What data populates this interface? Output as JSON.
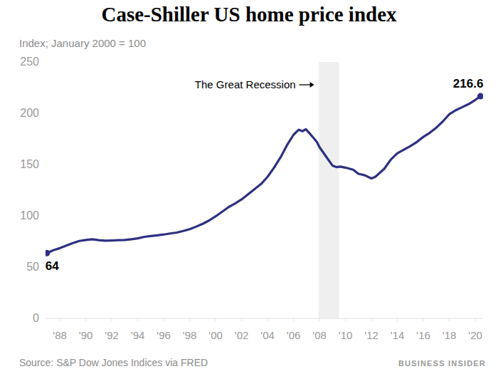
{
  "chart_data": {
    "type": "line",
    "title": "Case-Shiller US home price index",
    "subtitle": "Index; January 2000 = 100",
    "source": "Source: S&P Dow Jones Indices via FRED",
    "credit": "BUSINESS INSIDER",
    "color": "#2e3082",
    "grid": false,
    "data_labels": true,
    "xlim": [
      1986.9,
      2020.6
    ],
    "ylim": [
      0,
      250
    ],
    "yticks": [
      0,
      50,
      100,
      150,
      200,
      250
    ],
    "xticks": [
      {
        "value": 1988,
        "label": "'88"
      },
      {
        "value": 1990,
        "label": "'90"
      },
      {
        "value": 1992,
        "label": "'92"
      },
      {
        "value": 1994,
        "label": "'94"
      },
      {
        "value": 1996,
        "label": "'96"
      },
      {
        "value": 1998,
        "label": "'98"
      },
      {
        "value": 2000,
        "label": "'00"
      },
      {
        "value": 2002,
        "label": "'02"
      },
      {
        "value": 2004,
        "label": "'04"
      },
      {
        "value": 2006,
        "label": "'06"
      },
      {
        "value": 2008,
        "label": "'08"
      },
      {
        "value": 2010,
        "label": "'10"
      },
      {
        "value": 2012,
        "label": "'12"
      },
      {
        "value": 2014,
        "label": "'14"
      },
      {
        "value": 2016,
        "label": "'16"
      },
      {
        "value": 2018,
        "label": "'18"
      },
      {
        "value": 2020,
        "label": "'20"
      }
    ],
    "annotations": [
      {
        "text": "The Great Recession",
        "x_start": 2007.92,
        "x_end": 2009.5
      }
    ],
    "x": [
      1987.0,
      1987.5,
      1988.0,
      1988.5,
      1989.0,
      1989.5,
      1990.0,
      1990.5,
      1991.0,
      1991.5,
      1992.0,
      1992.5,
      1993.0,
      1993.5,
      1994.0,
      1994.5,
      1995.0,
      1995.5,
      1996.0,
      1996.5,
      1997.0,
      1997.5,
      1998.0,
      1998.5,
      1999.0,
      1999.5,
      2000.0,
      2000.5,
      2001.0,
      2001.5,
      2002.0,
      2002.5,
      2003.0,
      2003.5,
      2004.0,
      2004.5,
      2005.0,
      2005.5,
      2006.0,
      2006.4,
      2006.7,
      2006.95,
      2007.2,
      2007.5,
      2007.8,
      2008.0,
      2008.5,
      2009.0,
      2009.3,
      2009.6,
      2010.0,
      2010.3,
      2010.6,
      2011.0,
      2011.5,
      2012.0,
      2012.3,
      2012.7,
      2013.0,
      2013.5,
      2014.0,
      2014.5,
      2015.0,
      2015.5,
      2016.0,
      2016.5,
      2017.0,
      2017.5,
      2018.0,
      2018.5,
      2019.0,
      2019.5,
      2020.0,
      2020.4
    ],
    "values": [
      63.7,
      66.5,
      68.5,
      71,
      73.5,
      75.5,
      76.5,
      77.2,
      76.3,
      75.8,
      76,
      76.3,
      76.5,
      77.2,
      78,
      79.5,
      80.3,
      81,
      81.8,
      82.8,
      83.7,
      85.2,
      87,
      89.5,
      92.2,
      95.5,
      99.5,
      104,
      108.5,
      112,
      116,
      121,
      126,
      131,
      138,
      147,
      157,
      169,
      179,
      184,
      182.5,
      184.5,
      181,
      176.5,
      172,
      167,
      158,
      149,
      147.5,
      148,
      147,
      146,
      145,
      141,
      139.5,
      136.5,
      138,
      142.5,
      146,
      155,
      161,
      164.5,
      168,
      172,
      177,
      181,
      186,
      192,
      199,
      203,
      206,
      209,
      213,
      216.6
    ],
    "value_labels": [
      "64",
      null,
      null,
      null,
      null,
      null,
      null,
      null,
      null,
      null,
      null,
      null,
      null,
      null,
      null,
      null,
      null,
      null,
      null,
      null,
      null,
      null,
      null,
      null,
      null,
      null,
      null,
      null,
      null,
      null,
      null,
      null,
      null,
      null,
      null,
      null,
      null,
      null,
      null,
      null,
      null,
      null,
      null,
      null,
      null,
      null,
      null,
      null,
      null,
      null,
      null,
      null,
      null,
      null,
      null,
      null,
      null,
      null,
      null,
      null,
      null,
      null,
      null,
      null,
      null,
      null,
      null,
      null,
      null,
      null,
      null,
      null,
      null,
      "216.6"
    ]
  }
}
